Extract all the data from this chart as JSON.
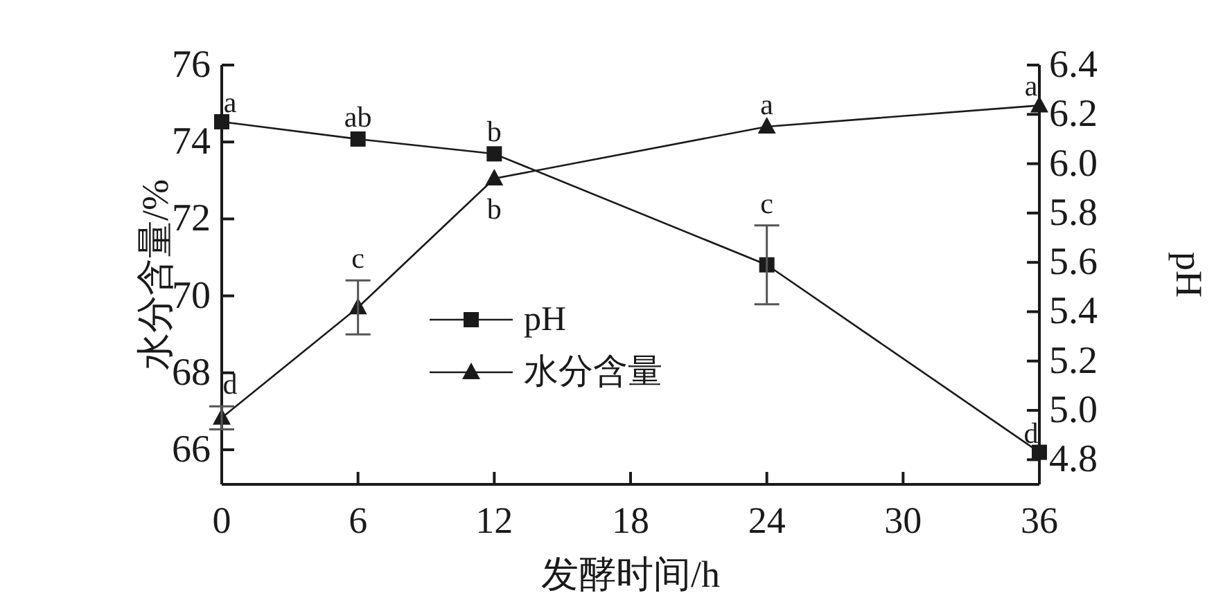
{
  "chart_data": {
    "type": "line",
    "xlabel": "发酵时间/h",
    "ylabel": "水分含量/%",
    "y2label": "pH",
    "x": [
      0,
      6,
      12,
      24,
      36
    ],
    "series": [
      {
        "name": "pH",
        "color": "#1a1a1a",
        "axis": "y2",
        "marker": "square",
        "values": [
          6.17,
          6.1,
          6.04,
          5.59,
          4.83
        ],
        "errors": [
          null,
          null,
          null,
          0.16,
          null
        ],
        "value_labels": [
          "a",
          "ab",
          "b",
          "c",
          "d"
        ]
      },
      {
        "name": "水分含量",
        "color": "#1a1a1a",
        "marker": "triangle",
        "values": [
          66.83,
          69.7,
          73.05,
          74.4,
          74.95
        ],
        "errors": [
          0.3,
          0.7,
          null,
          null,
          null
        ],
        "value_labels": [
          "d",
          "c",
          "b",
          "a",
          "a"
        ]
      }
    ],
    "xlim": [
      0,
      36
    ],
    "xticks": [
      0,
      6,
      12,
      18,
      24,
      30,
      36
    ],
    "ylim": [
      65.1,
      76
    ],
    "yticks": [
      66,
      68,
      70,
      72,
      74,
      76
    ],
    "y2lim": [
      4.7,
      6.4
    ],
    "y2ticks": [
      {
        "value": 4.8,
        "label": "4.8"
      },
      {
        "value": 5.0,
        "label": "5.0"
      },
      {
        "value": 5.2,
        "label": "5.2"
      },
      {
        "value": 5.4,
        "label": "5.4"
      },
      {
        "value": 5.6,
        "label": "5.6"
      },
      {
        "value": 5.8,
        "label": "5.8"
      },
      {
        "value": 6.0,
        "label": "6.0"
      },
      {
        "value": 6.2,
        "label": "6.2"
      },
      {
        "value": 6.4,
        "label": "6.4"
      }
    ],
    "line_style": "solid",
    "legend": "center"
  }
}
